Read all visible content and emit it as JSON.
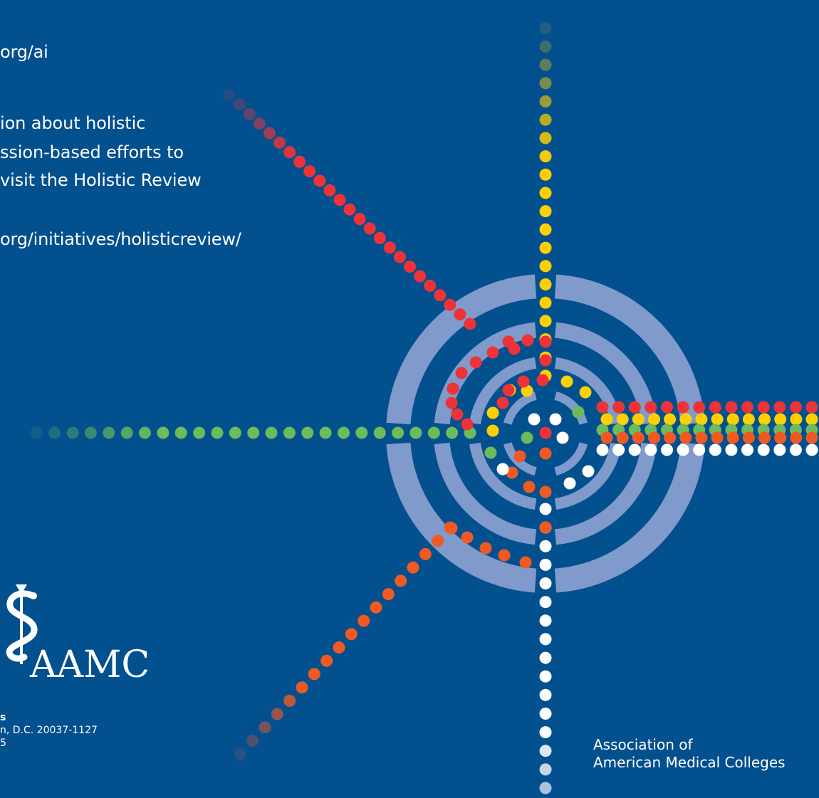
{
  "colors": {
    "background": "#03508f",
    "ring": "#7f9acb",
    "yellow": "#ffd000",
    "red": "#ee3338",
    "orange": "#f05a22",
    "green": "#6cbb5c",
    "white": "#ffffff",
    "light_blue": "#aec2e0"
  },
  "text": {
    "url_1": "org/ai",
    "para_line_1": "ion about holistic",
    "para_line_2": "ssion-based efforts to",
    "para_line_3": "visit the Holistic Review",
    "url_2": "org/initiatives/holisticreview/",
    "address_line_1": "s",
    "address_line_2": "n, D.C. 20037-1127",
    "address_line_3": "5",
    "logo_text": "AAMC",
    "assoc_line_1": "Association of",
    "assoc_line_2": "American Medical Colleges"
  },
  "icons": {
    "logo": "caduceus-icon"
  }
}
